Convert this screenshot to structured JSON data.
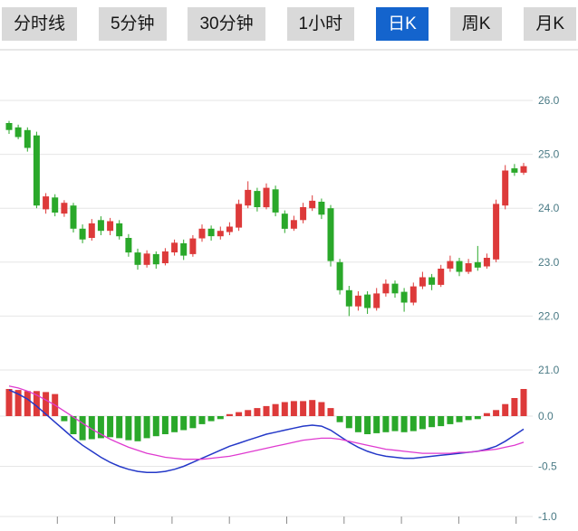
{
  "tabs": [
    {
      "label": "分时线",
      "selected": false
    },
    {
      "label": "5分钟",
      "selected": false
    },
    {
      "label": "30分钟",
      "selected": false
    },
    {
      "label": "1小时",
      "selected": false
    },
    {
      "label": "日K",
      "selected": true
    },
    {
      "label": "周K",
      "selected": false
    },
    {
      "label": "月K",
      "selected": false
    }
  ],
  "colors": {
    "up": "#dd3a3a",
    "down": "#2aa82a",
    "dif_line": "#2438c8",
    "dea_line": "#df3ad0",
    "tab_bg": "#d9d9d9",
    "tab_selected_bg": "#1464cd",
    "grid": "#e6e6e6",
    "separator": "#cfcfcf",
    "axis_label": "#4a7a85",
    "tick": "#8a8a8a"
  },
  "chart_data": [
    {
      "type": "candlestick",
      "panel": "price",
      "convention": "red = up (close >= open), green = down",
      "yticks": [
        26,
        25,
        24,
        23,
        22,
        21
      ],
      "ytick_labels": [
        "26.0",
        "25.0",
        "24.0",
        "23.0",
        "22.0",
        "21.0"
      ],
      "ylim": [
        20.9,
        26.9
      ],
      "grid": true,
      "candles": [
        [
          25.58,
          25.62,
          25.38,
          25.45
        ],
        [
          25.5,
          25.55,
          25.28,
          25.32
        ],
        [
          25.45,
          25.5,
          25.05,
          25.12
        ],
        [
          25.35,
          25.42,
          24.0,
          24.05
        ],
        [
          23.98,
          24.28,
          23.9,
          24.22
        ],
        [
          24.2,
          24.26,
          23.85,
          23.92
        ],
        [
          23.9,
          24.15,
          23.84,
          24.1
        ],
        [
          24.05,
          24.1,
          23.55,
          23.62
        ],
        [
          23.62,
          23.7,
          23.35,
          23.42
        ],
        [
          23.45,
          23.8,
          23.4,
          23.72
        ],
        [
          23.78,
          23.85,
          23.5,
          23.58
        ],
        [
          23.58,
          23.82,
          23.5,
          23.76
        ],
        [
          23.72,
          23.78,
          23.42,
          23.48
        ],
        [
          23.45,
          23.52,
          23.1,
          23.18
        ],
        [
          23.18,
          23.25,
          22.86,
          22.95
        ],
        [
          22.95,
          23.22,
          22.9,
          23.16
        ],
        [
          23.15,
          23.2,
          22.88,
          22.96
        ],
        [
          22.98,
          23.26,
          22.94,
          23.2
        ],
        [
          23.18,
          23.42,
          23.12,
          23.36
        ],
        [
          23.35,
          23.42,
          23.04,
          23.12
        ],
        [
          23.15,
          23.5,
          23.1,
          23.44
        ],
        [
          23.44,
          23.7,
          23.38,
          23.62
        ],
        [
          23.62,
          23.68,
          23.4,
          23.48
        ],
        [
          23.48,
          23.66,
          23.42,
          23.58
        ],
        [
          23.56,
          23.74,
          23.5,
          23.66
        ],
        [
          23.64,
          24.16,
          23.58,
          24.08
        ],
        [
          24.05,
          24.5,
          24.0,
          24.34
        ],
        [
          24.32,
          24.38,
          23.94,
          24.02
        ],
        [
          24.02,
          24.46,
          23.98,
          24.38
        ],
        [
          24.35,
          24.42,
          23.85,
          23.92
        ],
        [
          23.9,
          23.96,
          23.54,
          23.62
        ],
        [
          23.62,
          23.86,
          23.58,
          23.78
        ],
        [
          23.78,
          24.1,
          23.72,
          24.02
        ],
        [
          24.0,
          24.24,
          23.95,
          24.14
        ],
        [
          24.12,
          24.18,
          23.8,
          23.88
        ],
        [
          24.0,
          24.06,
          22.92,
          23.02
        ],
        [
          23.0,
          23.06,
          22.4,
          22.48
        ],
        [
          22.48,
          22.56,
          22.0,
          22.18
        ],
        [
          22.18,
          22.46,
          22.1,
          22.38
        ],
        [
          22.4,
          22.46,
          22.04,
          22.15
        ],
        [
          22.15,
          22.52,
          22.1,
          22.42
        ],
        [
          22.42,
          22.68,
          22.36,
          22.6
        ],
        [
          22.6,
          22.66,
          22.34,
          22.42
        ],
        [
          22.45,
          22.52,
          22.08,
          22.25
        ],
        [
          22.25,
          22.62,
          22.2,
          22.55
        ],
        [
          22.55,
          22.82,
          22.5,
          22.72
        ],
        [
          22.72,
          22.78,
          22.48,
          22.58
        ],
        [
          22.58,
          22.95,
          22.54,
          22.88
        ],
        [
          22.88,
          23.12,
          22.82,
          23.02
        ],
        [
          23.02,
          23.08,
          22.74,
          22.82
        ],
        [
          22.82,
          23.06,
          22.78,
          22.98
        ],
        [
          23.0,
          23.3,
          22.84,
          22.9
        ],
        [
          22.92,
          23.16,
          22.88,
          23.08
        ],
        [
          23.05,
          24.16,
          23.0,
          24.08
        ],
        [
          24.05,
          24.8,
          23.98,
          24.7
        ],
        [
          24.74,
          24.82,
          24.6,
          24.66
        ],
        [
          24.66,
          24.84,
          24.62,
          24.78
        ]
      ]
    },
    {
      "type": "macd",
      "panel": "indicator",
      "yticks": [
        0,
        -0.5,
        -1
      ],
      "ytick_labels": [
        "0.0",
        "-0.5",
        "-1.0"
      ],
      "ylim": [
        -1.05,
        0.35
      ],
      "grid": true,
      "histogram": [
        0.27,
        0.26,
        0.25,
        0.25,
        0.24,
        0.22,
        -0.05,
        -0.18,
        -0.24,
        -0.23,
        -0.22,
        -0.21,
        -0.22,
        -0.24,
        -0.25,
        -0.22,
        -0.2,
        -0.18,
        -0.16,
        -0.14,
        -0.12,
        -0.08,
        -0.05,
        -0.03,
        0.02,
        0.04,
        0.06,
        0.08,
        0.1,
        0.12,
        0.14,
        0.15,
        0.15,
        0.16,
        0.14,
        0.08,
        -0.06,
        -0.12,
        -0.16,
        -0.18,
        -0.17,
        -0.16,
        -0.15,
        -0.16,
        -0.15,
        -0.13,
        -0.11,
        -0.1,
        -0.08,
        -0.06,
        -0.04,
        -0.03,
        0.03,
        0.06,
        0.12,
        0.18,
        0.27
      ],
      "series": [
        {
          "name": "DIF",
          "values": [
            0.26,
            0.22,
            0.17,
            0.1,
            0.02,
            -0.06,
            -0.14,
            -0.22,
            -0.29,
            -0.35,
            -0.41,
            -0.46,
            -0.5,
            -0.53,
            -0.55,
            -0.56,
            -0.56,
            -0.55,
            -0.53,
            -0.5,
            -0.46,
            -0.42,
            -0.38,
            -0.34,
            -0.3,
            -0.27,
            -0.24,
            -0.21,
            -0.18,
            -0.16,
            -0.14,
            -0.12,
            -0.1,
            -0.09,
            -0.1,
            -0.14,
            -0.2,
            -0.26,
            -0.31,
            -0.35,
            -0.38,
            -0.4,
            -0.41,
            -0.42,
            -0.42,
            -0.41,
            -0.4,
            -0.39,
            -0.38,
            -0.37,
            -0.36,
            -0.35,
            -0.33,
            -0.3,
            -0.25,
            -0.19,
            -0.13
          ]
        },
        {
          "name": "DEA",
          "values": [
            0.3,
            0.28,
            0.25,
            0.21,
            0.16,
            0.11,
            0.05,
            -0.01,
            -0.07,
            -0.13,
            -0.18,
            -0.23,
            -0.27,
            -0.31,
            -0.34,
            -0.37,
            -0.39,
            -0.41,
            -0.42,
            -0.43,
            -0.43,
            -0.43,
            -0.42,
            -0.41,
            -0.4,
            -0.38,
            -0.36,
            -0.34,
            -0.32,
            -0.3,
            -0.28,
            -0.26,
            -0.24,
            -0.23,
            -0.22,
            -0.22,
            -0.23,
            -0.25,
            -0.27,
            -0.29,
            -0.31,
            -0.33,
            -0.34,
            -0.35,
            -0.36,
            -0.37,
            -0.37,
            -0.37,
            -0.37,
            -0.36,
            -0.36,
            -0.35,
            -0.34,
            -0.33,
            -0.31,
            -0.29,
            -0.26
          ]
        }
      ]
    }
  ]
}
